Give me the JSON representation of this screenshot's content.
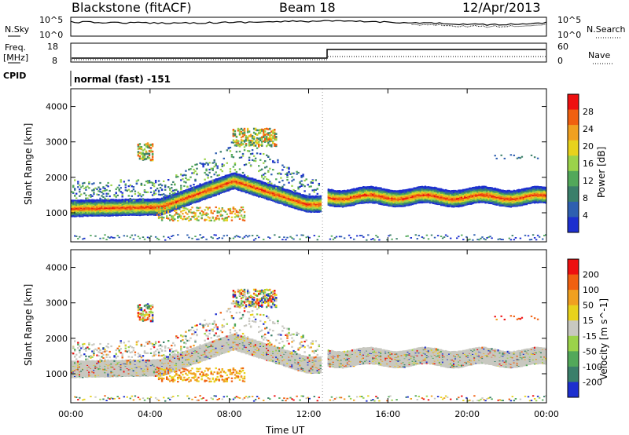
{
  "header": {
    "station": "Blackstone (fitACF)",
    "beam": "Beam 18",
    "date": "12/Apr/2013"
  },
  "top_panels": {
    "nsky_label": "N.Sky",
    "nsearch_label": "N.Search",
    "noise_ticks_left": [
      "10^5",
      "10^0"
    ],
    "noise_ticks_right": [
      "10^5",
      "10^0"
    ],
    "freq_label_1": "Freq.",
    "freq_label_2": "[MHz]",
    "freq_ticks": [
      "18",
      "8"
    ],
    "nave_label": "Nave",
    "nave_ticks": [
      "60",
      "0"
    ],
    "cpid_label": "CPID",
    "cpid_value": "normal (fast) -151"
  },
  "colors": {
    "power_scale": [
      "#1d2fcf",
      "#2e5fb0",
      "#3a7f6a",
      "#52a85a",
      "#9bd34a",
      "#e8d21c",
      "#f0a020",
      "#f06010",
      "#ee1010"
    ],
    "velocity_scale": [
      "#1d2fcf",
      "#3a7f6a",
      "#52a85a",
      "#9bd34a",
      "#c8c8c0",
      "#e8d21c",
      "#f0a020",
      "#f06010",
      "#ee1010"
    ]
  },
  "chart_data": [
    {
      "type": "heatmap",
      "title": "Power",
      "xlabel": "Time UT",
      "ylabel": "Slant Range [km]",
      "x_ticks": [
        "00:00",
        "04:00",
        "08:00",
        "12:00",
        "16:00",
        "20:00",
        "00:00"
      ],
      "y_ticks": [
        1000,
        2000,
        3000,
        4000
      ],
      "ylim": [
        180,
        4500
      ],
      "xlim_hours": [
        0,
        24
      ],
      "colorbar_label": "Power [dB]",
      "colorbar_ticks": [
        "28",
        "24",
        "20",
        "16",
        "12",
        "8",
        "4"
      ]
    },
    {
      "type": "heatmap",
      "title": "Velocity",
      "xlabel": "Time UT",
      "ylabel": "Slant Range [km]",
      "x_ticks": [
        "00:00",
        "04:00",
        "08:00",
        "12:00",
        "16:00",
        "20:00",
        "00:00"
      ],
      "y_ticks": [
        1000,
        2000,
        3000,
        4000
      ],
      "ylim": [
        180,
        4500
      ],
      "xlim_hours": [
        0,
        24
      ],
      "colorbar_label": "Velocity [m s^-1]",
      "colorbar_ticks": [
        "200",
        "100",
        "50",
        "15",
        "-15",
        "-50",
        "-100",
        "-200"
      ]
    }
  ]
}
